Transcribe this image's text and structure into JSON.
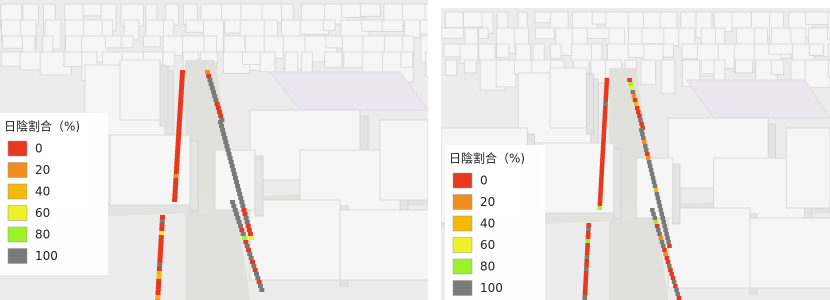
{
  "panels": [
    {
      "legend": {
        "title": "日陰割合（%)",
        "items": [
          {
            "label": 0,
            "color": "#e8381e"
          },
          {
            "label": 20,
            "color": "#f28c1e"
          },
          {
            "label": 40,
            "color": "#f5b90a"
          },
          {
            "label": 60,
            "color": "#eef02a"
          },
          {
            "label": 80,
            "color": "#9ef22a"
          },
          {
            "label": 100,
            "color": "#7a7a7a"
          }
        ]
      }
    },
    {
      "legend": {
        "title": "日陰割合（%)",
        "items": [
          {
            "label": 0,
            "color": "#e8381e"
          },
          {
            "label": 20,
            "color": "#f28c1e"
          },
          {
            "label": 40,
            "color": "#f5b90a"
          },
          {
            "label": 60,
            "color": "#eef02a"
          },
          {
            "label": 80,
            "color": "#9ef22a"
          },
          {
            "label": 100,
            "color": "#7a7a7a"
          }
        ]
      }
    }
  ]
}
